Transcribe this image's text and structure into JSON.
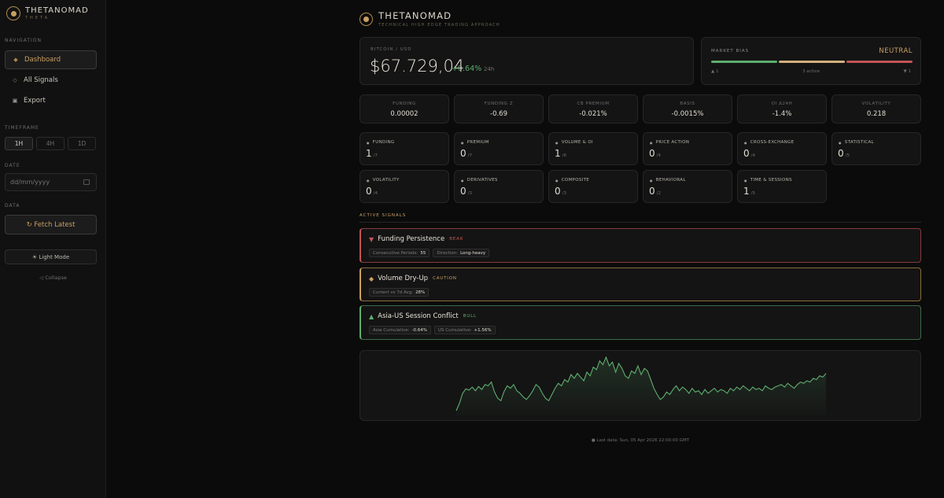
{
  "brand": {
    "title": "THETANOMAD",
    "subtitle": "THETA"
  },
  "sidebar": {
    "navigation_label": "NAVIGATION",
    "nav": [
      {
        "label": "Dashboard",
        "icon": "diamond-icon",
        "glyph": "◆"
      },
      {
        "label": "All Signals",
        "icon": "diamond-outline-icon",
        "glyph": "◇"
      },
      {
        "label": "Export",
        "icon": "square-icon",
        "glyph": "▣"
      }
    ],
    "timeframe_label": "TIMEFRAME",
    "timeframes": [
      "1H",
      "4H",
      "1D"
    ],
    "date_label": "DATE",
    "date_placeholder": "dd/mm/yyyy",
    "data_label": "DATA",
    "fetch_label": "↻ Fetch Latest",
    "light_mode_label": "☀ Light Mode",
    "collapse_label": "◁ Collapse"
  },
  "header": {
    "title": "THETANOMAD",
    "subtitle": "TECHNICAL HIGH EDGE TRADING APPROACH"
  },
  "price": {
    "label": "BITCOIN / USD",
    "value": "$67.729,04",
    "change": "+0.64%",
    "period": "24h"
  },
  "bias": {
    "label": "MARKET BIAS",
    "value": "NEUTRAL",
    "bull_count": "▲ 1",
    "active": "3 active",
    "bear_count": "▼ 1",
    "colors": {
      "bull": "#5fae6f",
      "neutral": "#d2b07c",
      "bear": "#c25555"
    }
  },
  "metrics": [
    {
      "label": "FUNDING",
      "value": "0.00002"
    },
    {
      "label": "FUNDING Z",
      "value": "-0.69"
    },
    {
      "label": "CB PREMIUM",
      "value": "-0.021%"
    },
    {
      "label": "BASIS",
      "value": "-0.0015%"
    },
    {
      "label": "OI Δ24H",
      "value": "-1.4%"
    },
    {
      "label": "VOLATILITY",
      "value": "0.218"
    }
  ],
  "categories": [
    {
      "label": "FUNDING",
      "count": "1",
      "total": "/7"
    },
    {
      "label": "PREMIUM",
      "count": "0",
      "total": "/7"
    },
    {
      "label": "VOLUME & OI",
      "count": "1",
      "total": "/6"
    },
    {
      "label": "PRICE ACTION",
      "count": "0",
      "total": "/4"
    },
    {
      "label": "CROSS-EXCHANGE",
      "count": "0",
      "total": "/4"
    },
    {
      "label": "STATISTICAL",
      "count": "0",
      "total": "/5"
    },
    {
      "label": "VOLATILITY",
      "count": "0",
      "total": "/4"
    },
    {
      "label": "DERIVATIVES",
      "count": "0",
      "total": "/3"
    },
    {
      "label": "COMPOSITE",
      "count": "0",
      "total": "/3"
    },
    {
      "label": "BEHAVIORAL",
      "count": "0",
      "total": "/2"
    },
    {
      "label": "TIME & SESSIONS",
      "count": "1",
      "total": "/5"
    }
  ],
  "signals_title": "ACTIVE SIGNALS",
  "signals": [
    {
      "type": "bear",
      "glyph": "▼",
      "color": "#c25555",
      "title": "Funding Persistence",
      "tag": "BEAR",
      "chips": [
        {
          "k": "Consecutive Periods:",
          "v": "55"
        },
        {
          "k": "Direction:",
          "v": "Long-heavy"
        }
      ]
    },
    {
      "type": "caution",
      "glyph": "◆",
      "color": "#c9a063",
      "title": "Volume Dry-Up",
      "tag": "CAUTION",
      "chips": [
        {
          "k": "Current vs 7d Avg:",
          "v": "28%"
        }
      ]
    },
    {
      "type": "bull",
      "glyph": "▲",
      "color": "#5fae6f",
      "title": "Asia-US Session Conflict",
      "tag": "BULL",
      "chips": [
        {
          "k": "Asia Cumulative:",
          "v": "-0.64%"
        },
        {
          "k": "US Cumulative:",
          "v": "+1.56%"
        }
      ]
    }
  ],
  "chart_data": {
    "type": "area",
    "color": "#5fae6f",
    "values": [
      40,
      52,
      68,
      75,
      73,
      78,
      72,
      79,
      74,
      82,
      80,
      86,
      70,
      60,
      56,
      71,
      80,
      76,
      82,
      72,
      68,
      62,
      58,
      64,
      72,
      82,
      78,
      68,
      60,
      56,
      66,
      76,
      84,
      80,
      90,
      86,
      98,
      92,
      100,
      94,
      88,
      102,
      96,
      110,
      106,
      120,
      114,
      126,
      112,
      118,
      102,
      116,
      108,
      96,
      92,
      104,
      100,
      112,
      98,
      108,
      104,
      90,
      76,
      66,
      58,
      62,
      70,
      66,
      74,
      80,
      72,
      78,
      74,
      68,
      76,
      70,
      72,
      66,
      74,
      68,
      72,
      76,
      70,
      74,
      72,
      68,
      76,
      72,
      78,
      74,
      80,
      76,
      72,
      78,
      74,
      76,
      72,
      80,
      76,
      74,
      78,
      80,
      82,
      78,
      84,
      80,
      76,
      82,
      86,
      84,
      88,
      86,
      92,
      90,
      96,
      94,
      100
    ]
  },
  "footer": "● Last data: Sun, 05 Apr 2026 22:00:00 GMT"
}
